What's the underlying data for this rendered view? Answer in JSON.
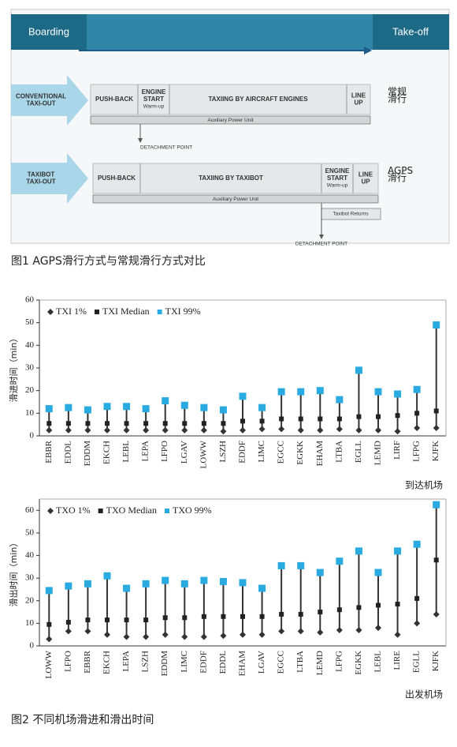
{
  "figure1": {
    "boarding": "Boarding",
    "takeoff": "Take-off",
    "rows": [
      {
        "mode": [
          "CONVENTIONAL",
          "TAXI-OUT"
        ],
        "steps": [
          [
            "PUSH-BACK"
          ],
          [
            "ENGINE",
            "START",
            "Warm-up"
          ],
          [
            "TAXIING BY AIRCRAFT ENGINES"
          ],
          [
            "LINE",
            "UP"
          ]
        ],
        "apu": "Auxiliary Power Unit",
        "detach": "DETACHMENT POINT",
        "cn": [
          "常规",
          "滑行"
        ]
      },
      {
        "mode": [
          "TAXIBOT",
          "TAXI-OUT"
        ],
        "steps": [
          [
            "PUSH-BACK"
          ],
          [
            "TAXIING BY TAXIBOT"
          ],
          [
            "ENGINE",
            "START",
            "Warm-up"
          ],
          [
            "LINE",
            "UP"
          ]
        ],
        "apu": "Auxiliary Power Unit",
        "returns": "Taxibot Returns",
        "detach": "DETACHMENT POINT",
        "cn": [
          "AGPS",
          "滑行"
        ]
      }
    ],
    "caption": "图1   AGPS滑行方式与常规滑行方式对比"
  },
  "chart_data": [
    {
      "type": "range-dot",
      "ylabel": "滑进时间（min）",
      "xlabel": "到达机场",
      "categories": [
        "EBBR",
        "EDDL",
        "EDDM",
        "EKCH",
        "LEBL",
        "LEPA",
        "LFPO",
        "LGAV",
        "LOWW",
        "LSZH",
        "EDDF",
        "LIMC",
        "EGCC",
        "EGKK",
        "EHAM",
        "LTBA",
        "EGLL",
        "LEMD",
        "LIRF",
        "LFPG",
        "KJFK"
      ],
      "series": [
        {
          "name": "TXI 1%",
          "color": "#333333",
          "marker": "diamond",
          "values": [
            2.5,
            2.5,
            2.5,
            2.5,
            2.5,
            2.5,
            2.5,
            2.5,
            2.5,
            2,
            2.5,
            3,
            3,
            2.5,
            2.5,
            3,
            2.5,
            2.5,
            2,
            3.5,
            3.5
          ]
        },
        {
          "name": "TXI Median",
          "color": "#222222",
          "marker": "square",
          "values": [
            5.5,
            5.5,
            5.5,
            5.5,
            5.5,
            5.5,
            5.5,
            5.5,
            5.5,
            5.5,
            6.5,
            6.5,
            7.5,
            7.5,
            7.5,
            7.5,
            8.5,
            8.5,
            9,
            10,
            11
          ]
        },
        {
          "name": "TXI 99%",
          "color": "#29abe2",
          "marker": "square",
          "values": [
            12,
            12.5,
            11.5,
            13,
            13,
            12,
            15.5,
            13.5,
            12.5,
            11.5,
            17.5,
            12.5,
            19.5,
            19.5,
            20,
            16,
            29,
            19.5,
            18.5,
            20.5,
            49
          ]
        }
      ],
      "ylim": [
        0,
        60
      ],
      "yticks": [
        0,
        10,
        20,
        30,
        40,
        50,
        60
      ]
    },
    {
      "type": "range-dot",
      "ylabel": "滑出时间（min）",
      "xlabel": "出发机场",
      "categories": [
        "LOWW",
        "LFPO",
        "EBBR",
        "EKCH",
        "LEPA",
        "LSZH",
        "EDDM",
        "LIMC",
        "EDDF",
        "EDDL",
        "EHAM",
        "LGAV",
        "EGCC",
        "LTBA",
        "LEMD",
        "LFPG",
        "EGKK",
        "LEBL",
        "LIRE",
        "EGLL",
        "KJFK"
      ],
      "series": [
        {
          "name": "TXO 1%",
          "color": "#333333",
          "marker": "diamond",
          "values": [
            3,
            6.5,
            6.5,
            5,
            4,
            4,
            5,
            4,
            4,
            4.5,
            5,
            5,
            6.5,
            6.5,
            6,
            7,
            7,
            8,
            5,
            10,
            14
          ]
        },
        {
          "name": "TXO Median",
          "color": "#222222",
          "marker": "square",
          "values": [
            9.5,
            10.5,
            11.5,
            11.5,
            11.5,
            11.5,
            12.5,
            12.5,
            13,
            13,
            13,
            13,
            14,
            14,
            15,
            16,
            17,
            18,
            18.5,
            21,
            38
          ]
        },
        {
          "name": "TXO 99%",
          "color": "#29abe2",
          "marker": "square",
          "values": [
            24.5,
            26.5,
            27.5,
            31,
            25.5,
            27.5,
            29,
            27.5,
            29,
            28.5,
            28,
            25.5,
            35.5,
            35.5,
            32.5,
            37.5,
            42,
            32.5,
            42,
            45,
            62.5
          ]
        }
      ],
      "ylim": [
        0,
        65
      ],
      "yticks": [
        0,
        10,
        20,
        30,
        40,
        50,
        60
      ]
    }
  ],
  "caption2": "图2   不同机场滑进和滑出时间"
}
